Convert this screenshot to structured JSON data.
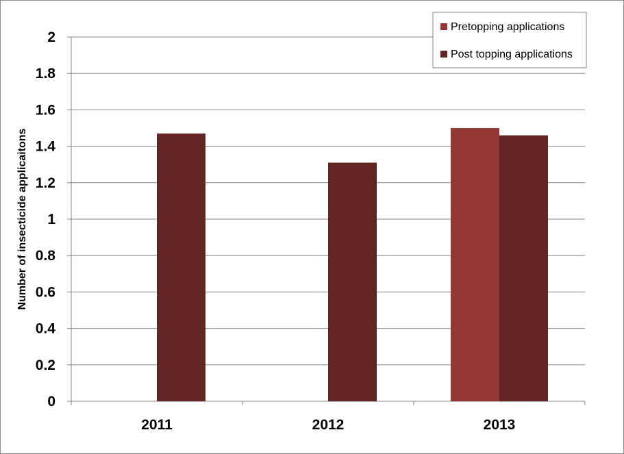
{
  "chart_data": {
    "type": "bar",
    "categories": [
      "2011",
      "2012",
      "2013"
    ],
    "series": [
      {
        "name": "Pretopping applications",
        "color": "#953735",
        "values": [
          null,
          null,
          1.5
        ]
      },
      {
        "name": "Post topping applications",
        "color": "#632523",
        "values": [
          1.47,
          1.31,
          1.46
        ]
      }
    ],
    "ylabel": "Number of insecticide applicaitons",
    "xlabel": "",
    "ylim": [
      0,
      2
    ],
    "yticks": [
      "0",
      "0.2",
      "0.4",
      "0.6",
      "0.8",
      "1",
      "1.2",
      "1.4",
      "1.6",
      "1.8",
      "2"
    ],
    "grid": true,
    "legend_position": "top-right"
  }
}
